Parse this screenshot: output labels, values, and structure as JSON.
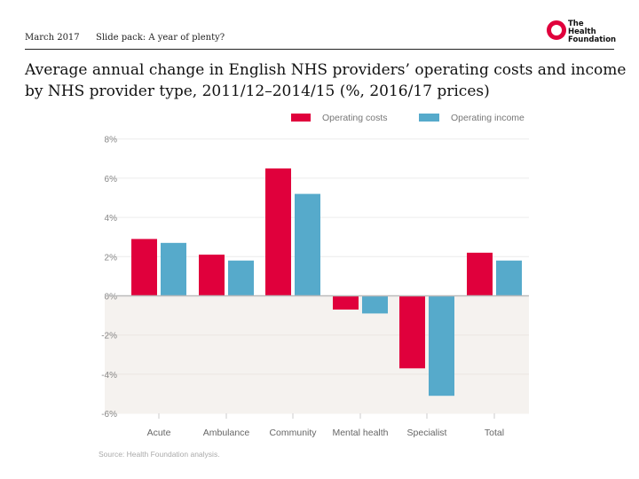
{
  "header": {
    "date": "March 2017",
    "slide_pack": "Slide pack: A year of plenty?",
    "logo_text": "The Health Foundation"
  },
  "colors": {
    "costs": "#e0003c",
    "income": "#56aacb",
    "negative_bg": "#f5f2ef"
  },
  "chart_data": {
    "type": "bar",
    "title": "Average annual change in English NHS providers’ operating costs and income by NHS provider type, 2011/12–2014/15 (%, 2016/17 prices)",
    "categories": [
      "Acute",
      "Ambulance",
      "Community",
      "Mental health",
      "Specialist",
      "Total"
    ],
    "series": [
      {
        "name": "Operating costs",
        "values": [
          2.9,
          2.1,
          6.5,
          -0.7,
          -3.7,
          2.2
        ]
      },
      {
        "name": "Operating income",
        "values": [
          2.7,
          1.8,
          5.2,
          -0.9,
          -5.1,
          1.8
        ]
      }
    ],
    "ylim": [
      -6,
      8
    ],
    "yticks": [
      "8%",
      "6%",
      "4%",
      "2%",
      "0%",
      "-2%",
      "-4%",
      "-6%"
    ],
    "ytick_values": [
      8,
      6,
      4,
      2,
      0,
      -2,
      -4,
      -6
    ],
    "grid": true,
    "legend": "top-right",
    "source": "Source: Health Foundation analysis."
  }
}
